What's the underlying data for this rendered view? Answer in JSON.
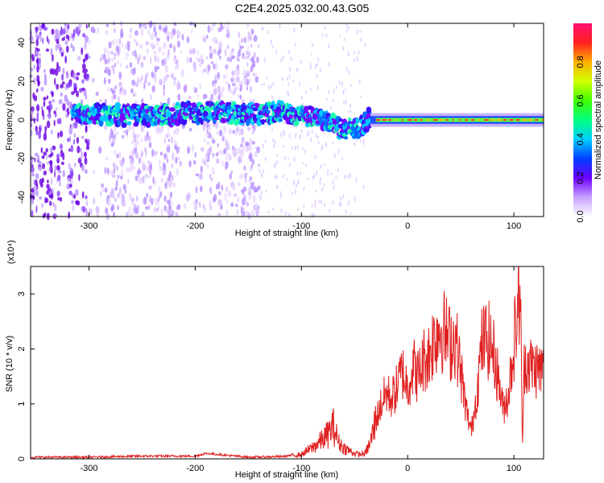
{
  "title": "C2E4.2025.032.00.43.G05",
  "chart_data": [
    {
      "type": "heatmap",
      "title": "C2E4.2025.032.00.43.G05",
      "xlabel": "Height of straight line (km)",
      "ylabel": "Frequency (Hz)",
      "xlim": [
        -355,
        128
      ],
      "ylim": [
        -50,
        50
      ],
      "x_ticks": [
        -300,
        -200,
        -100,
        0,
        100
      ],
      "y_ticks": [
        -40,
        -20,
        0,
        20,
        40
      ],
      "colorbar": {
        "label": "Normalized spectral amplitude",
        "range": [
          0,
          1
        ],
        "ticks": [
          "0.0",
          "0.2",
          "0.4",
          "0.6",
          "0.8"
        ]
      },
      "center_frequency_track": {
        "x": [
          -355,
          -300,
          -250,
          -200,
          -150,
          -120,
          -100,
          -80,
          -70,
          -60,
          -50,
          -40,
          -35,
          -30,
          -20,
          -10,
          0,
          50,
          100,
          128
        ],
        "y": [
          5,
          3,
          2,
          4,
          3,
          4,
          3,
          0,
          -2,
          -6,
          -4,
          -2,
          2,
          0,
          1,
          0,
          0,
          0,
          0,
          0
        ]
      },
      "grid": false
    },
    {
      "type": "line",
      "xlabel": "Height of straight line (km)",
      "ylabel": "SNR (10 * v/v)",
      "y_multiplier_label": "(x10⁴)",
      "xlim": [
        -355,
        128
      ],
      "ylim": [
        0,
        3.5
      ],
      "x_ticks": [
        -300,
        -200,
        -100,
        0,
        100
      ],
      "y_ticks": [
        0,
        1,
        2,
        3
      ],
      "series": [
        {
          "color": "#e02020",
          "x": [
            -355,
            -300,
            -250,
            -200,
            -190,
            -150,
            -120,
            -100,
            -90,
            -80,
            -75,
            -70,
            -65,
            -60,
            -55,
            -50,
            -45,
            -40,
            -35,
            -30,
            -25,
            -20,
            -15,
            -10,
            -5,
            0,
            5,
            10,
            15,
            20,
            25,
            30,
            35,
            40,
            45,
            50,
            55,
            60,
            65,
            70,
            75,
            80,
            85,
            90,
            95,
            100,
            103,
            106,
            108,
            110,
            115,
            120,
            128
          ],
          "y": [
            0.03,
            0.03,
            0.05,
            0.05,
            0.1,
            0.03,
            0.04,
            0.08,
            0.2,
            0.35,
            0.45,
            0.6,
            0.3,
            0.2,
            0.15,
            0.1,
            0.08,
            0.1,
            0.3,
            0.7,
            1.0,
            1.2,
            1.1,
            1.3,
            1.6,
            1.3,
            1.7,
            1.5,
            1.8,
            1.9,
            2.2,
            2.4,
            2.3,
            2.1,
            2.2,
            1.6,
            0.9,
            0.5,
            1.2,
            2.1,
            2.2,
            2.0,
            1.5,
            0.9,
            1.2,
            2.1,
            2.6,
            3.2,
            0.2,
            1.8,
            1.7,
            1.65,
            1.6
          ]
        }
      ],
      "grid": false
    }
  ]
}
